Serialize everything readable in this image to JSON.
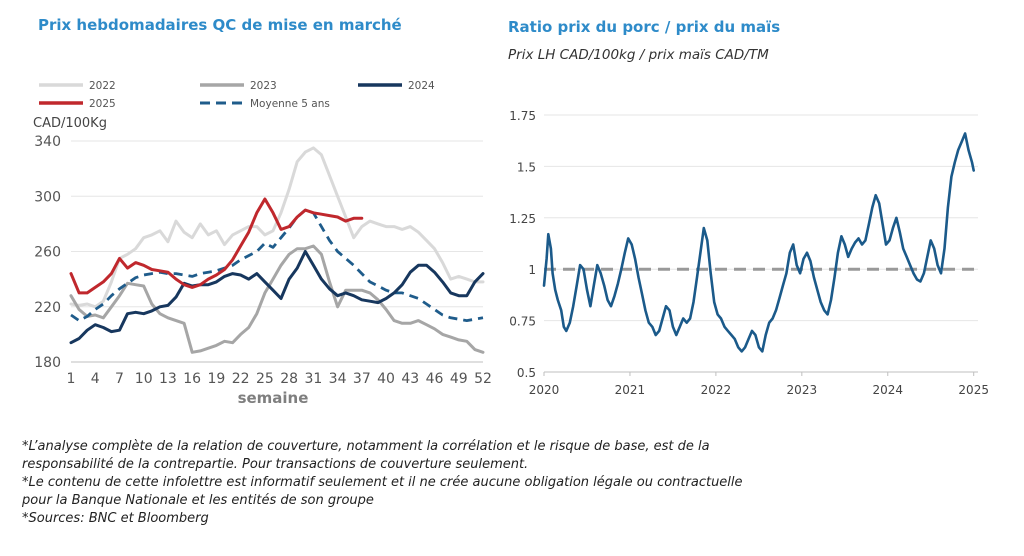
{
  "left_title": "Prix hebdomadaires QC de mise en marché",
  "right_title": "Ratio prix du porc / prix du maïs",
  "right_subtitle": "Prix LH CAD/100kg / prix maïs CAD/TM",
  "footnotes": [
    "*L’analyse complète de la relation de couverture, notamment la corrélation et le risque de base, est de la",
    "responsabilité de la contrepartie. Pour transactions de couverture seulement.",
    "*Le contenu de cette infolettre est informatif seulement et il ne crée aucune obligation légale ou contractuelle",
    "pour la Banque Nationale et les entités de son groupe",
    "*Sources: BNC et Bloomberg"
  ],
  "colors": {
    "title": "#2e8bc9",
    "s2022": "#d9d9d9",
    "s2023": "#a6a6a6",
    "s2024": "#17375e",
    "s2025": "#c0282d",
    "avg5": "#1f5c8b",
    "ratio": "#1b5a8a",
    "ref": "#999999"
  },
  "chart_data": [
    {
      "type": "line",
      "title": "Prix hebdomadaires QC de mise en marché",
      "ylabel": "CAD/100Kg",
      "xlabel": "semaine",
      "ylim": [
        180,
        340
      ],
      "yticks": [
        180,
        220,
        260,
        300,
        340
      ],
      "xlim": [
        1,
        52
      ],
      "xticks": [
        1,
        4,
        7,
        10,
        13,
        16,
        19,
        22,
        25,
        28,
        31,
        34,
        37,
        40,
        43,
        46,
        49,
        52
      ],
      "legend_position": "top",
      "grid": "horizontal",
      "series": [
        {
          "name": "2022",
          "color_key": "s2022",
          "style": "solid",
          "weeks_start": 1,
          "values": [
            222,
            221,
            222,
            220,
            224,
            238,
            255,
            258,
            262,
            270,
            272,
            275,
            267,
            282,
            274,
            270,
            280,
            272,
            275,
            265,
            272,
            275,
            278,
            278,
            272,
            275,
            288,
            305,
            325,
            332,
            335,
            330,
            315,
            300,
            285,
            270,
            278,
            282,
            280,
            278,
            278,
            276,
            278,
            274,
            268,
            262,
            252,
            240,
            242,
            240,
            238,
            238
          ]
        },
        {
          "name": "2023",
          "color_key": "s2023",
          "style": "solid",
          "weeks_start": 1,
          "values": [
            228,
            218,
            213,
            214,
            212,
            220,
            228,
            237,
            236,
            235,
            222,
            215,
            212,
            210,
            208,
            187,
            188,
            190,
            192,
            195,
            194,
            200,
            205,
            215,
            230,
            240,
            250,
            258,
            262,
            262,
            264,
            258,
            238,
            220,
            232,
            232,
            232,
            230,
            225,
            218,
            210,
            208,
            208,
            210,
            207,
            204,
            200,
            198,
            196,
            195,
            189,
            187
          ]
        },
        {
          "name": "2024",
          "color_key": "s2024",
          "style": "solid",
          "weeks_start": 1,
          "values": [
            194,
            197,
            203,
            207,
            205,
            202,
            203,
            215,
            216,
            215,
            217,
            220,
            221,
            227,
            237,
            235,
            236,
            236,
            238,
            242,
            244,
            243,
            240,
            244,
            238,
            232,
            226,
            240,
            248,
            260,
            250,
            240,
            233,
            228,
            230,
            228,
            225,
            224,
            223,
            226,
            230,
            236,
            245,
            250,
            250,
            245,
            238,
            230,
            228,
            228,
            238,
            244
          ]
        },
        {
          "name": "2025",
          "color_key": "s2025",
          "style": "solid",
          "weeks_start": 1,
          "values": [
            244,
            230,
            230,
            234,
            238,
            244,
            255,
            248,
            252,
            250,
            247,
            246,
            245,
            240,
            236,
            234,
            236,
            240,
            243,
            247,
            254,
            264,
            274,
            288,
            298,
            288,
            276,
            278,
            285,
            290,
            288,
            287,
            286,
            285,
            282,
            284,
            284
          ]
        },
        {
          "name": "Moyenne 5 ans",
          "color_key": "avg5",
          "style": "dashed",
          "weeks_start": 1,
          "values": [
            214,
            210,
            213,
            218,
            222,
            228,
            233,
            237,
            241,
            243,
            244,
            245,
            244,
            244,
            243,
            242,
            244,
            245,
            246,
            248,
            250,
            254,
            257,
            260,
            266,
            263,
            270,
            277,
            285,
            290,
            288,
            278,
            268,
            260,
            255,
            250,
            244,
            238,
            235,
            232,
            230,
            230,
            228,
            226,
            222,
            218,
            214,
            212,
            211,
            210,
            211,
            212
          ]
        }
      ]
    },
    {
      "type": "line",
      "title": "Ratio prix du porc / prix du maïs",
      "subtitle": "Prix LH CAD/100kg / prix maïs CAD/TM",
      "ylim": [
        0.5,
        1.75
      ],
      "yticks": [
        "0.5",
        "0.75",
        "1",
        "1.25",
        "1.5",
        "1.75"
      ],
      "xlim": [
        2020,
        2025.05
      ],
      "xticks": [
        "2020",
        "2021",
        "2022",
        "2023",
        "2024",
        "2025"
      ],
      "grid": "horizontal",
      "reference_line": {
        "y": 1.0,
        "style": "dashed",
        "color_key": "ref"
      },
      "series": [
        {
          "name": "",
          "color_key": "ratio",
          "x": [
            2020.0,
            2020.03,
            2020.05,
            2020.08,
            2020.1,
            2020.13,
            2020.16,
            2020.2,
            2020.23,
            2020.26,
            2020.3,
            2020.34,
            2020.38,
            2020.42,
            2020.46,
            2020.5,
            2020.54,
            2020.58,
            2020.62,
            2020.66,
            2020.7,
            2020.74,
            2020.78,
            2020.82,
            2020.86,
            2020.9,
            2020.94,
            2020.98,
            2021.02,
            2021.06,
            2021.1,
            2021.14,
            2021.18,
            2021.22,
            2021.26,
            2021.3,
            2021.34,
            2021.38,
            2021.42,
            2021.46,
            2021.5,
            2021.54,
            2021.58,
            2021.62,
            2021.66,
            2021.7,
            2021.74,
            2021.78,
            2021.82,
            2021.86,
            2021.9,
            2021.94,
            2021.98,
            2022.02,
            2022.06,
            2022.1,
            2022.14,
            2022.18,
            2022.22,
            2022.26,
            2022.3,
            2022.34,
            2022.38,
            2022.42,
            2022.46,
            2022.5,
            2022.54,
            2022.58,
            2022.62,
            2022.66,
            2022.7,
            2022.74,
            2022.78,
            2022.82,
            2022.86,
            2022.9,
            2022.94,
            2022.98,
            2023.02,
            2023.06,
            2023.1,
            2023.14,
            2023.18,
            2023.22,
            2023.26,
            2023.3,
            2023.34,
            2023.38,
            2023.42,
            2023.46,
            2023.5,
            2023.54,
            2023.58,
            2023.62,
            2023.66,
            2023.7,
            2023.74,
            2023.78,
            2023.82,
            2023.86,
            2023.9,
            2023.94,
            2023.98,
            2024.02,
            2024.06,
            2024.1,
            2024.14,
            2024.18,
            2024.22,
            2024.26,
            2024.3,
            2024.34,
            2024.38,
            2024.42,
            2024.46,
            2024.5,
            2024.54,
            2024.58,
            2024.62,
            2024.66,
            2024.7,
            2024.74,
            2024.78,
            2024.82,
            2024.86,
            2024.9,
            2024.94,
            2024.98,
            2025.0
          ],
          "y": [
            0.92,
            1.05,
            1.17,
            1.1,
            0.98,
            0.9,
            0.85,
            0.8,
            0.72,
            0.7,
            0.74,
            0.82,
            0.92,
            1.02,
            1.0,
            0.9,
            0.82,
            0.92,
            1.02,
            0.98,
            0.92,
            0.85,
            0.82,
            0.87,
            0.93,
            1.0,
            1.08,
            1.15,
            1.12,
            1.05,
            0.96,
            0.88,
            0.8,
            0.74,
            0.72,
            0.68,
            0.7,
            0.76,
            0.82,
            0.8,
            0.72,
            0.68,
            0.72,
            0.76,
            0.74,
            0.76,
            0.84,
            0.96,
            1.08,
            1.2,
            1.14,
            0.98,
            0.84,
            0.78,
            0.76,
            0.72,
            0.7,
            0.68,
            0.66,
            0.62,
            0.6,
            0.62,
            0.66,
            0.7,
            0.68,
            0.62,
            0.6,
            0.68,
            0.74,
            0.76,
            0.8,
            0.86,
            0.92,
            0.98,
            1.08,
            1.12,
            1.02,
            0.98,
            1.05,
            1.08,
            1.04,
            0.96,
            0.9,
            0.84,
            0.8,
            0.78,
            0.85,
            0.96,
            1.08,
            1.16,
            1.12,
            1.06,
            1.1,
            1.13,
            1.15,
            1.12,
            1.14,
            1.22,
            1.3,
            1.36,
            1.32,
            1.22,
            1.12,
            1.14,
            1.2,
            1.25,
            1.18,
            1.1,
            1.06,
            1.02,
            0.98,
            0.95,
            0.94,
            0.98,
            1.06,
            1.14,
            1.1,
            1.02,
            0.98,
            1.1,
            1.3,
            1.45,
            1.52,
            1.58,
            1.62,
            1.66,
            1.58,
            1.52,
            1.48
          ]
        }
      ]
    }
  ]
}
